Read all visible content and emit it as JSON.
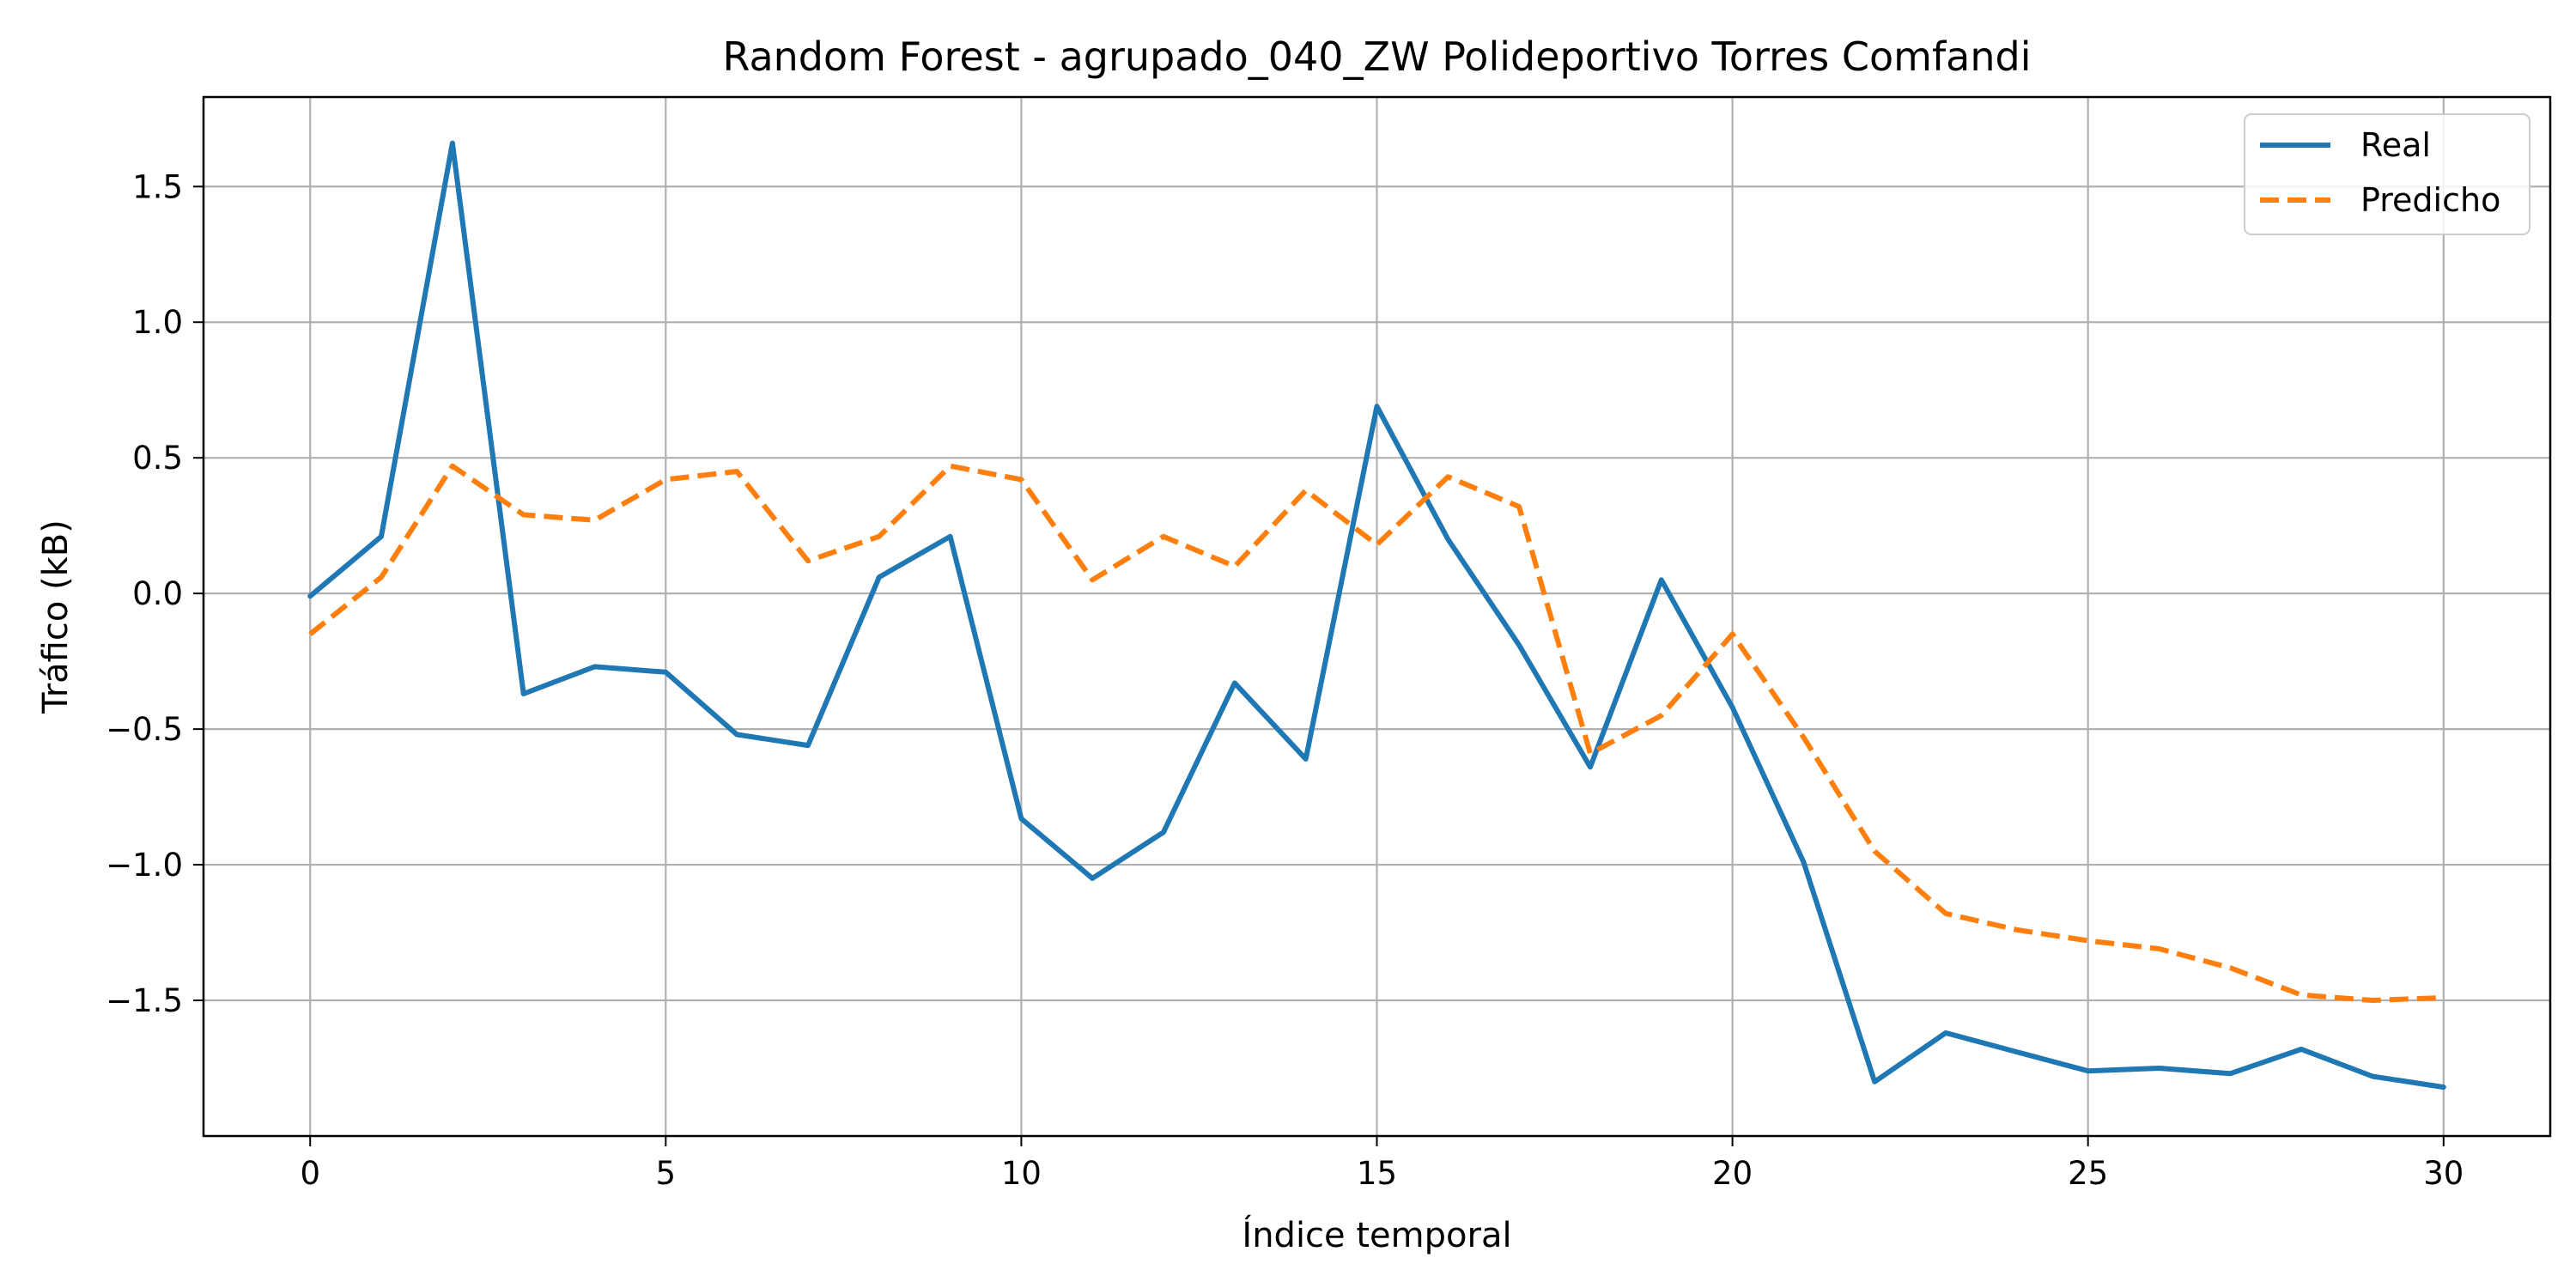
{
  "chart_data": {
    "type": "line",
    "title": "Random Forest - agrupado_040_ZW Polideportivo Torres Comfandi",
    "xlabel": "Índice temporal",
    "ylabel": "Tráfico (kB)",
    "xlim": [
      -1.5,
      31.5
    ],
    "ylim": [
      -2.0,
      1.83
    ],
    "xticks": [
      0,
      5,
      10,
      15,
      20,
      25,
      30
    ],
    "yticks": [
      -1.5,
      -1.0,
      -0.5,
      0.0,
      0.5,
      1.0,
      1.5
    ],
    "ytick_labels": [
      "−1.5",
      "−1.0",
      "−0.5",
      "0.0",
      "0.5",
      "1.0",
      "1.5"
    ],
    "grid": true,
    "legend_position": "top-right",
    "x": [
      0,
      1,
      2,
      3,
      4,
      5,
      6,
      7,
      8,
      9,
      10,
      11,
      12,
      13,
      14,
      15,
      16,
      17,
      18,
      19,
      20,
      21,
      22,
      23,
      24,
      25,
      26,
      27,
      28,
      29,
      30
    ],
    "series": [
      {
        "name": "Real",
        "color": "#1f77b4",
        "style": "solid",
        "values": [
          -0.01,
          0.21,
          1.66,
          -0.37,
          -0.27,
          -0.29,
          -0.52,
          -0.56,
          0.06,
          0.21,
          -0.83,
          -1.05,
          -0.88,
          -0.33,
          -0.61,
          0.69,
          0.2,
          -0.19,
          -0.64,
          0.05,
          -0.42,
          -0.99,
          -1.8,
          -1.62,
          -1.69,
          -1.76,
          -1.75,
          -1.77,
          -1.68,
          -1.78,
          -1.82
        ]
      },
      {
        "name": "Predicho",
        "color": "#ff7f0e",
        "style": "dashed",
        "values": [
          -0.15,
          0.06,
          0.47,
          0.29,
          0.27,
          0.42,
          0.45,
          0.12,
          0.21,
          0.47,
          0.42,
          0.05,
          0.21,
          0.1,
          0.38,
          0.18,
          0.43,
          0.32,
          -0.59,
          -0.45,
          -0.15,
          -0.53,
          -0.95,
          -1.18,
          -1.24,
          -1.28,
          -1.31,
          -1.38,
          -1.48,
          -1.5,
          -1.49
        ]
      }
    ]
  }
}
